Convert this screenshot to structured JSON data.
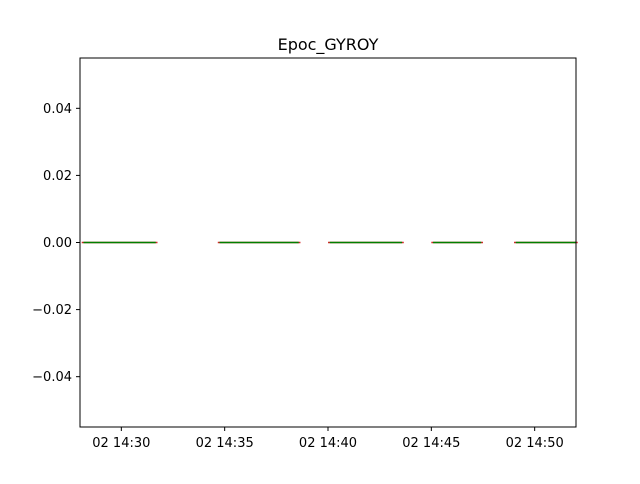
{
  "chart_data": {
    "type": "line",
    "title": "Epoc_GYROY",
    "xlabel": "",
    "ylabel": "",
    "x_axis": {
      "kind": "time",
      "range": [
        "02 14:28",
        "02 14:52"
      ],
      "ticks": [
        "02 14:30",
        "02 14:35",
        "02 14:40",
        "02 14:45",
        "02 14:50"
      ]
    },
    "y_axis": {
      "range": [
        -0.055,
        0.055
      ],
      "ticks": [
        "0.04",
        "0.02",
        "0.00",
        "−0.02",
        "−0.04"
      ],
      "tick_values": [
        0.04,
        0.02,
        0.0,
        -0.02,
        -0.04
      ]
    },
    "grid": false,
    "legend": "none",
    "series": [
      {
        "color": "#d62728",
        "segments": [
          {
            "x": [
              "02 14:28:05",
              "02 14:31:45"
            ],
            "y": [
              0,
              0
            ]
          },
          {
            "x": [
              "02 14:34:40",
              "02 14:38:40"
            ],
            "y": [
              0,
              0
            ]
          },
          {
            "x": [
              "02 14:40:00",
              "02 14:43:40"
            ],
            "y": [
              0,
              0
            ]
          },
          {
            "x": [
              "02 14:45:00",
              "02 14:47:30"
            ],
            "y": [
              0,
              0
            ]
          },
          {
            "x": [
              "02 14:49:00",
              "02 14:52:05"
            ],
            "y": [
              0,
              0
            ]
          }
        ]
      },
      {
        "color": "#008000",
        "segments": [
          {
            "x": [
              "02 14:28:10",
              "02 14:31:40"
            ],
            "y": [
              0,
              0
            ]
          },
          {
            "x": [
              "02 14:34:45",
              "02 14:38:35"
            ],
            "y": [
              0,
              0
            ]
          },
          {
            "x": [
              "02 14:40:05",
              "02 14:43:35"
            ],
            "y": [
              0,
              0
            ]
          },
          {
            "x": [
              "02 14:45:05",
              "02 14:47:25"
            ],
            "y": [
              0,
              0
            ]
          },
          {
            "x": [
              "02 14:49:05",
              "02 14:52:00"
            ],
            "y": [
              0,
              0
            ]
          }
        ]
      }
    ]
  }
}
